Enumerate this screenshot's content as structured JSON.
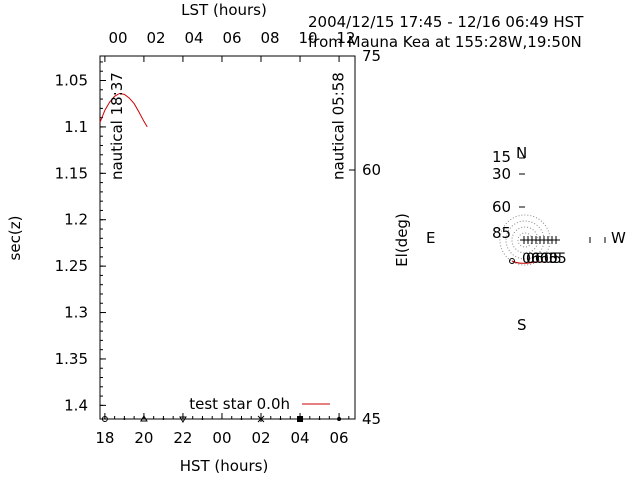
{
  "header": {
    "line1": "2004/12/15 17:45 - 12/16 06:49 HST",
    "line2": "from Mauna Kea at 155:28W,19:50N"
  },
  "chart_data": [
    {
      "type": "line",
      "xlabel": "HST (hours)",
      "ylabel": "sec(z)",
      "x2label": "LST (hours)",
      "y2label": "El(deg)",
      "x_ticks": [
        "18",
        "20",
        "22",
        "00",
        "02",
        "04",
        "06"
      ],
      "x2_ticks": [
        "00",
        "02",
        "04",
        "06",
        "08",
        "10",
        "12"
      ],
      "y_ticks": [
        "1.05",
        "1.1",
        "1.15",
        "1.2",
        "1.25",
        "1.3",
        "1.35",
        "1.4"
      ],
      "y2_ticks": [
        "75",
        "60",
        "45"
      ],
      "xlim": [
        17.75,
        30.8167
      ],
      "ylim": [
        1.0236,
        1.4147
      ],
      "annotations": [
        {
          "text": "nautical 18:37",
          "x": 18.617
        },
        {
          "text": "nautical 05:58",
          "x": 29.967
        }
      ],
      "legend_position": "bottom-right",
      "series": [
        {
          "name": "test star 0.0h",
          "color": "#cc0000",
          "x": [
            17.75,
            18.0,
            18.25,
            18.5,
            18.75,
            19.0,
            19.25,
            19.5,
            19.75,
            20.0,
            20.1667
          ],
          "y": [
            1.095,
            1.082,
            1.073,
            1.067,
            1.064,
            1.065,
            1.069,
            1.075,
            1.084,
            1.094,
            1.1
          ]
        }
      ]
    },
    {
      "type": "scatter",
      "title": "",
      "compass": {
        "north": "N",
        "south": "S",
        "east": "E",
        "west": "W"
      },
      "elevation_labels": [
        "15",
        "30",
        "60",
        "85"
      ],
      "track_labels": [
        "0605",
        "0605",
        "0605"
      ],
      "track_color": "#cc0000"
    }
  ]
}
